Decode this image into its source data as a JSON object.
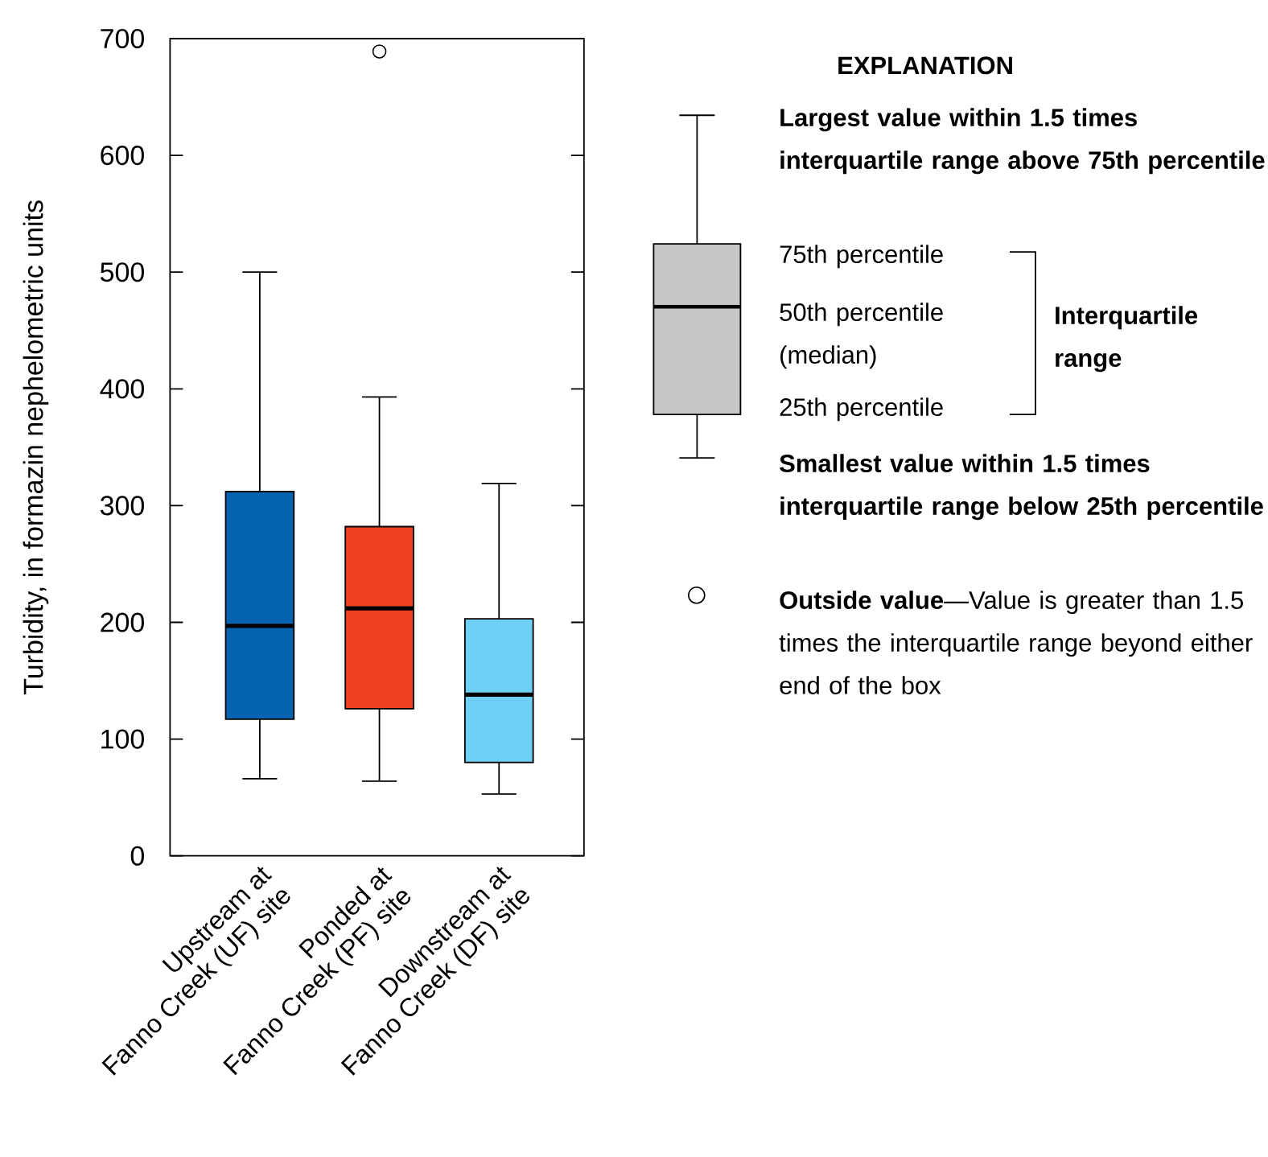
{
  "chart_data": {
    "type": "box",
    "ylabel": "Turbidity, in formazin nephelometric units",
    "categories": [
      "Upstream at\nFanno Creek (UF) site",
      "Ponded at\nFanno Creek (PF) site",
      "Downstream at\nFanno Creek (DF) site"
    ],
    "colors": [
      "#0563b0",
      "#ef4023",
      "#6ed0f5"
    ],
    "boxes": [
      {
        "low": 66,
        "q1": 117,
        "median": 197,
        "q3": 312,
        "high": 500
      },
      {
        "low": 64,
        "q1": 126,
        "median": 212,
        "q3": 282,
        "high": 393,
        "outliers": [
          689
        ]
      },
      {
        "low": 53,
        "q1": 80,
        "median": 138,
        "q3": 203,
        "high": 319
      }
    ],
    "ylim": [
      0,
      700
    ],
    "yticks": [
      0,
      100,
      200,
      300,
      400,
      500,
      600,
      700
    ],
    "grid": false,
    "tick_labels": "y",
    "annotations": [
      "EXPLANATION",
      "Largest value within 1.5 times interquartile range above 75th percentile",
      "75th percentile",
      "50th percentile (median)",
      "25th percentile",
      "Interquartile range",
      "Smallest value within 1.5 times interquartile range below 25th percentile",
      "**Outside value**—Value is greater than 1.5 times the interquartile range beyond either end of the box"
    ]
  }
}
